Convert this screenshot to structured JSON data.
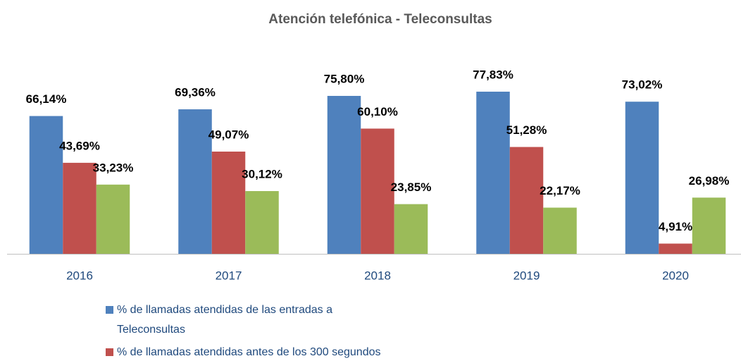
{
  "chart_data": {
    "type": "bar",
    "title": "Atención telefónica - Teleconsultas",
    "categories": [
      "2016",
      "2017",
      "2018",
      "2019",
      "2020"
    ],
    "series": [
      {
        "name": "% de llamadas atendidas de las entradas a Teleconsultas",
        "color": "#4f81bd",
        "values": [
          66.14,
          69.36,
          75.8,
          77.83,
          73.02
        ],
        "value_labels": [
          "66,14%",
          "69,36%",
          "75,80%",
          "77,83%",
          "73,02%"
        ]
      },
      {
        "name": "% de llamadas atendidas antes de los 300 segundos",
        "color": "#c0504d",
        "values": [
          43.69,
          49.07,
          60.1,
          51.28,
          4.91
        ],
        "value_labels": [
          "43,69%",
          "49,07%",
          "60,10%",
          "51,28%",
          "4,91%"
        ]
      },
      {
        "color": "#9bbb59",
        "values": [
          33.23,
          30.12,
          23.85,
          22.17,
          26.98
        ],
        "value_labels": [
          "33,23%",
          "30,12%",
          "23,85%",
          "22,17%",
          "26,98%"
        ]
      }
    ]
  }
}
